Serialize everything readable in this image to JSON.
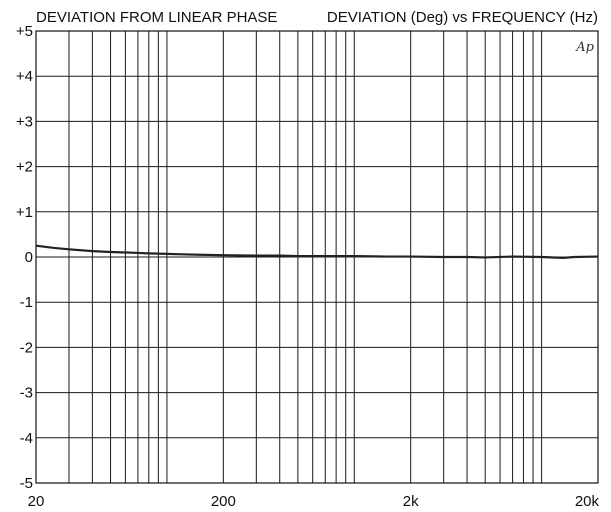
{
  "chart_data": {
    "type": "line",
    "title_left": "DEVIATION FROM LINEAR PHASE",
    "title_right": "DEVIATION (Deg) vs FREQUENCY (Hz)",
    "watermark": "Ap",
    "x_scale": "log",
    "xlim": [
      20,
      20000
    ],
    "ylim": [
      -5,
      5
    ],
    "x_tick_labels": [
      {
        "value": 20,
        "label": "20"
      },
      {
        "value": 200,
        "label": "200"
      },
      {
        "value": 2000,
        "label": "2k"
      },
      {
        "value": 20000,
        "label": "20k"
      }
    ],
    "y_tick_labels": [
      {
        "value": 5,
        "label": "+5"
      },
      {
        "value": 4,
        "label": "+4"
      },
      {
        "value": 3,
        "label": "+3"
      },
      {
        "value": 2,
        "label": "+2"
      },
      {
        "value": 1,
        "label": "+1"
      },
      {
        "value": 0,
        "label": "0"
      },
      {
        "value": -1,
        "label": "-1"
      },
      {
        "value": -2,
        "label": "-2"
      },
      {
        "value": -3,
        "label": "-3"
      },
      {
        "value": -4,
        "label": "-4"
      },
      {
        "value": -5,
        "label": "-5"
      }
    ],
    "grid": true,
    "series": [
      {
        "color": "#222222",
        "x": [
          20,
          25,
          30,
          40,
          50,
          60,
          70,
          80,
          100,
          120,
          150,
          200,
          300,
          400,
          500,
          700,
          1000,
          1500,
          2000,
          3000,
          4000,
          5000,
          7000,
          10000,
          13000,
          15000,
          20000
        ],
        "y": [
          0.25,
          0.2,
          0.17,
          0.13,
          0.11,
          0.1,
          0.09,
          0.08,
          0.07,
          0.06,
          0.05,
          0.04,
          0.03,
          0.03,
          0.02,
          0.02,
          0.02,
          0.01,
          0.01,
          0.0,
          0.0,
          -0.01,
          0.01,
          0.0,
          -0.02,
          0.0,
          0.01
        ]
      }
    ]
  }
}
